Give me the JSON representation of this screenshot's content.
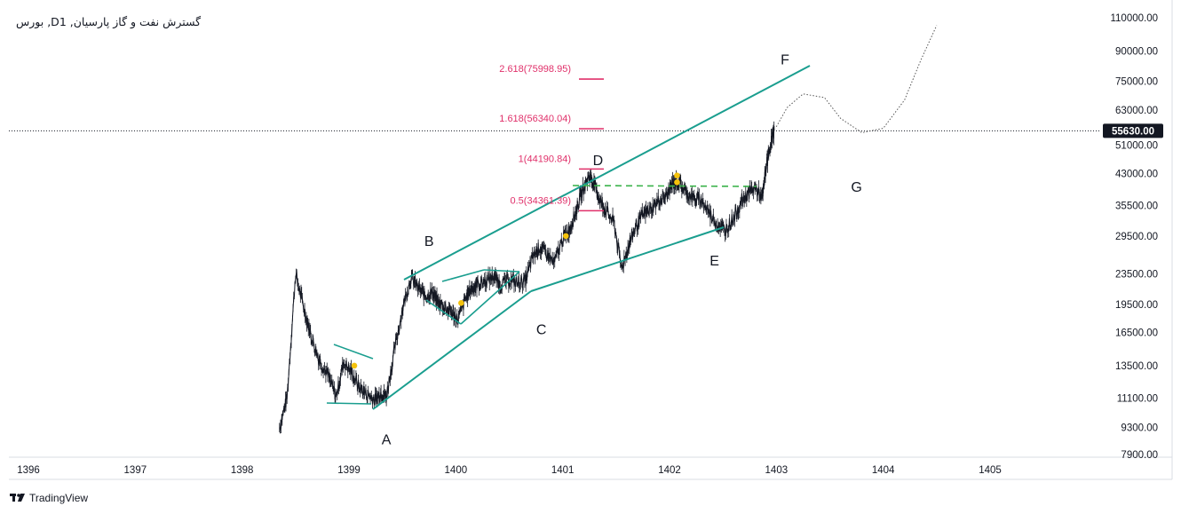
{
  "branding": {
    "name": "TradingView"
  },
  "chart_data": {
    "type": "line",
    "title": "بورس ,Dگسترش نفت و گاز پارسیان, 1",
    "y_scale": "log",
    "ylim": [
      7900,
      110000
    ],
    "y_ticks": [
      "110000.00",
      "90000.00",
      "75000.00",
      "63000.00",
      "51000.00",
      "43000.00",
      "35500.00",
      "29500.00",
      "23500.00",
      "19500.00",
      "16500.00",
      "13500.00",
      "11100.00",
      "9300.00",
      "7900.00"
    ],
    "x_ticks": [
      "1396",
      "1397",
      "1398",
      "1399",
      "1400",
      "1401",
      "1402",
      "1403",
      "1404",
      "1405"
    ],
    "xlim": [
      1396,
      1405.6
    ],
    "last_price": "55630.00",
    "last_price_value": 55630,
    "fib_levels": [
      {
        "label": "2.618(75998.95)",
        "value": 75998.95
      },
      {
        "label": "1.618(56340.04)",
        "value": 56340.04
      },
      {
        "label": "1(44190.84)",
        "value": 44190.84
      },
      {
        "label": "0.5(34361.39)",
        "value": 34361.39
      }
    ],
    "wave_labels": [
      {
        "text": "A",
        "x": 1399.35,
        "y": 8400
      },
      {
        "text": "B",
        "x": 1399.75,
        "y": 27800
      },
      {
        "text": "C",
        "x": 1400.8,
        "y": 16300
      },
      {
        "text": "D",
        "x": 1401.33,
        "y": 45200
      },
      {
        "text": "E",
        "x": 1402.42,
        "y": 24700
      },
      {
        "text": "F",
        "x": 1403.08,
        "y": 83000
      },
      {
        "text": "G",
        "x": 1403.75,
        "y": 38500
      }
    ],
    "markers": [
      {
        "x": 1399.05,
        "y": 13500
      },
      {
        "x": 1400.05,
        "y": 19700
      },
      {
        "x": 1401.03,
        "y": 29500
      },
      {
        "x": 1402.07,
        "y": 42500
      },
      {
        "x": 1402.07,
        "y": 40800
      }
    ],
    "series": [
      {
        "name": "close",
        "x": [
          1398.35,
          1398.42,
          1398.5,
          1398.58,
          1398.65,
          1398.72,
          1398.8,
          1398.88,
          1398.95,
          1399.02,
          1399.1,
          1399.18,
          1399.25,
          1399.3,
          1399.35,
          1399.42,
          1399.5,
          1399.58,
          1399.65,
          1399.72,
          1399.78,
          1399.83,
          1399.9,
          1399.96,
          1400.02,
          1400.1,
          1400.15,
          1400.2,
          1400.28,
          1400.35,
          1400.42,
          1400.5,
          1400.58,
          1400.65,
          1400.72,
          1400.78,
          1400.85,
          1400.92,
          1401.0,
          1401.06,
          1401.12,
          1401.18,
          1401.25,
          1401.3,
          1401.35,
          1401.4,
          1401.48,
          1401.55,
          1401.62,
          1401.68,
          1401.75,
          1401.82,
          1401.9,
          1401.97,
          1402.03,
          1402.08,
          1402.15,
          1402.22,
          1402.3,
          1402.37,
          1402.45,
          1402.52,
          1402.6,
          1402.67,
          1402.73,
          1402.8,
          1402.87,
          1402.9,
          1402.95,
          1402.98
        ],
        "values": [
          9300,
          11100,
          23500,
          19000,
          16000,
          14000,
          12800,
          11200,
          13800,
          13000,
          11800,
          11300,
          11000,
          11500,
          11200,
          14500,
          19000,
          23000,
          21500,
          20500,
          21000,
          19800,
          19200,
          18600,
          17800,
          20500,
          21500,
          22000,
          22500,
          23200,
          22000,
          22700,
          22200,
          22500,
          26000,
          27500,
          26500,
          25000,
          29000,
          30500,
          34000,
          38500,
          42500,
          40000,
          36500,
          34500,
          32000,
          24300,
          28000,
          31000,
          33500,
          34500,
          36500,
          37500,
          40500,
          41000,
          38500,
          37000,
          36500,
          34000,
          31500,
          30500,
          33000,
          36000,
          38000,
          39500,
          37000,
          44000,
          52000,
          55630
        ]
      }
    ],
    "projection": {
      "x": [
        1403.0,
        1403.1,
        1403.25,
        1403.45,
        1403.6,
        1403.8,
        1404.0,
        1404.2,
        1404.35,
        1404.5
      ],
      "values": [
        57000,
        64000,
        69500,
        68000,
        60000,
        55000,
        56500,
        67000,
        85000,
        105000
      ]
    }
  }
}
